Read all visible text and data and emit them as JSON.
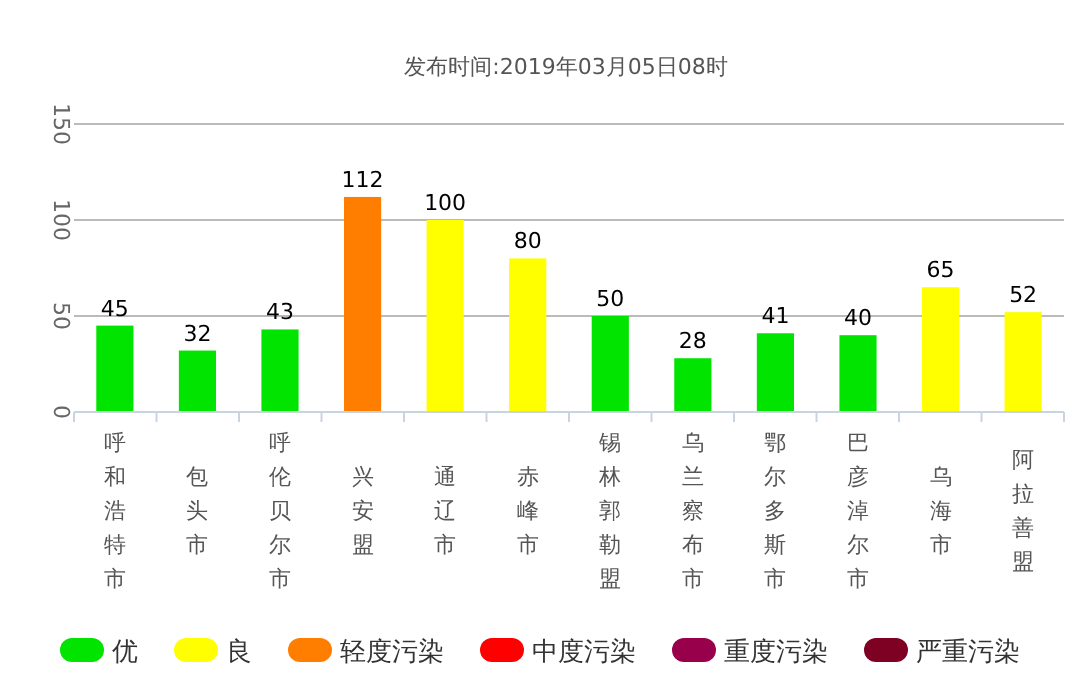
{
  "chart_data": {
    "type": "bar",
    "title": "发布时间:2019年03月05日08时",
    "categories": [
      "呼和浩特市",
      "包头市",
      "呼伦贝尔市",
      "兴安盟",
      "通辽市",
      "赤峰市",
      "锡林郭勒盟",
      "乌兰察布市",
      "鄂尔多斯市",
      "巴彦淖尔市",
      "乌海市",
      "阿拉善盟"
    ],
    "series": [
      {
        "name": "优",
        "color": "#00e400",
        "values": [
          45,
          32,
          43,
          null,
          null,
          null,
          50,
          28,
          41,
          40,
          null,
          null
        ]
      },
      {
        "name": "良",
        "color": "#ffff00",
        "values": [
          null,
          null,
          null,
          null,
          100,
          80,
          null,
          null,
          null,
          null,
          65,
          52
        ]
      },
      {
        "name": "轻度污染",
        "color": "#ff7e00",
        "values": [
          null,
          null,
          null,
          112,
          null,
          null,
          null,
          null,
          null,
          null,
          null,
          null
        ]
      },
      {
        "name": "中度污染",
        "color": "#ff0000",
        "values": [
          null,
          null,
          null,
          null,
          null,
          null,
          null,
          null,
          null,
          null,
          null,
          null
        ]
      },
      {
        "name": "重度污染",
        "color": "#99004c",
        "values": [
          null,
          null,
          null,
          null,
          null,
          null,
          null,
          null,
          null,
          null,
          null,
          null
        ]
      },
      {
        "name": "严重污染",
        "color": "#7e0023",
        "values": [
          null,
          null,
          null,
          null,
          null,
          null,
          null,
          null,
          null,
          null,
          null,
          null
        ]
      }
    ],
    "ylim": [
      0,
      150
    ],
    "yticks": [
      0,
      50,
      100,
      150
    ],
    "grid": "y",
    "data_labels": true,
    "legend": "bottom"
  }
}
